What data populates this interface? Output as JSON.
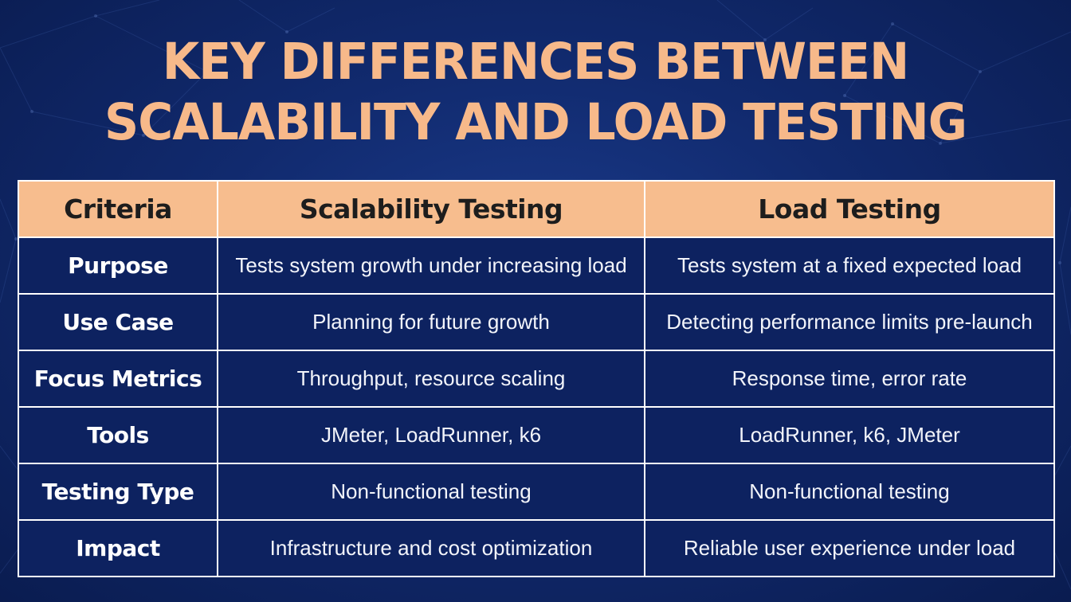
{
  "title": {
    "line1": "KEY DIFFERENCES BETWEEN",
    "line2": "SCALABILITY AND LOAD TESTING"
  },
  "table": {
    "headers": [
      "Criteria",
      "Scalability Testing",
      "Load Testing"
    ],
    "rows": [
      [
        "Purpose",
        "Tests system growth under increasing load",
        "Tests system at a fixed expected load"
      ],
      [
        "Use Case",
        "Planning for future growth",
        "Detecting performance limits pre-launch"
      ],
      [
        "Focus Metrics",
        "Throughput, resource scaling",
        "Response time, error rate"
      ],
      [
        "Tools",
        "JMeter, LoadRunner, k6",
        "LoadRunner, k6, JMeter"
      ],
      [
        "Testing Type",
        "Non-functional testing",
        "Non-functional testing"
      ],
      [
        "Impact",
        "Infrastructure and cost optimization",
        "Reliable user experience under load"
      ]
    ]
  },
  "colors": {
    "background": "#112a6e",
    "accent": "#f7b98a",
    "header_fill": "#f7bd8e",
    "cell_fill": "#0d2260",
    "border": "#ffffff"
  }
}
